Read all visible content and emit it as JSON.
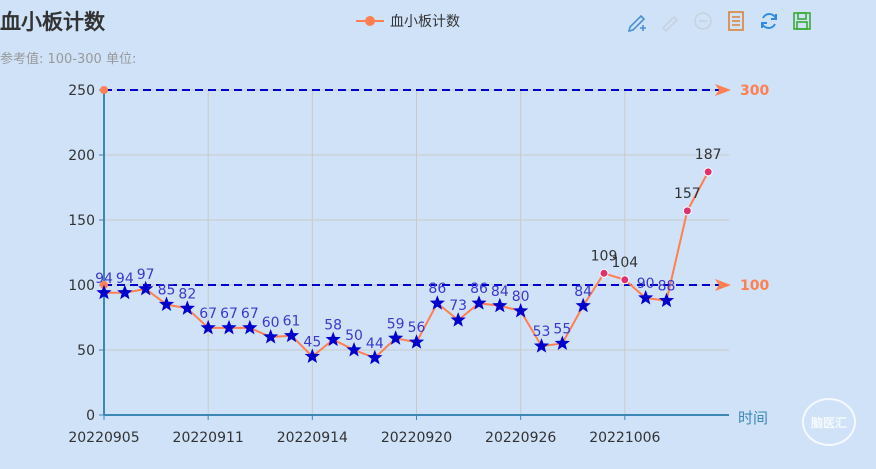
{
  "title": "血小板计数",
  "subtitle": "参考值: 100-300 单位:",
  "legend": {
    "label": "血小板计数"
  },
  "toolbox": [
    {
      "name": "edit-data-icon",
      "color": "#4a90d9"
    },
    {
      "name": "zoom-icon",
      "color": "#c8d2de"
    },
    {
      "name": "zoom-reset-icon",
      "color": "#c8d2de"
    },
    {
      "name": "data-view-icon",
      "color": "#d9823b"
    },
    {
      "name": "restore-icon",
      "color": "#2e8ae6"
    },
    {
      "name": "save-image-icon",
      "color": "#3aaa35"
    }
  ],
  "watermark": "脑医汇",
  "colors": {
    "line": "#ff7f50",
    "marker": "#0000cd",
    "high_point": "#e0306e",
    "label_normal": "#3a3acc",
    "label_high": "#333333",
    "ref_line": "#0000cd",
    "ref_label": "#ff7f50",
    "axis": "#3d87b5",
    "grid": "#c9c9c9"
  },
  "chart_data": {
    "type": "line",
    "x_ticks": [
      "20220905",
      "20220911",
      "20220914",
      "20220920",
      "20220926",
      "20221006"
    ],
    "x_tick_positions": [
      0,
      5,
      10,
      15,
      20,
      25
    ],
    "x_count": 31,
    "xlabel": "时间",
    "ylabel": "",
    "ylim": [
      0,
      250
    ],
    "y_ticks": [
      0,
      50,
      100,
      150,
      200,
      250
    ],
    "grid": true,
    "series": [
      {
        "name": "血小板计数",
        "points": [
          {
            "i": 0,
            "v": 94,
            "label": "94"
          },
          {
            "i": 1,
            "v": 94,
            "label": "94"
          },
          {
            "i": 2,
            "v": 97,
            "label": "97"
          },
          {
            "i": 3,
            "v": 85,
            "label": "85"
          },
          {
            "i": 4,
            "v": 82,
            "label": "82"
          },
          {
            "i": 5,
            "v": 67,
            "label": "67"
          },
          {
            "i": 6,
            "v": 67,
            "label": "67"
          },
          {
            "i": 7,
            "v": 67,
            "label": "67"
          },
          {
            "i": 8,
            "v": 60,
            "label": "60"
          },
          {
            "i": 9,
            "v": 61,
            "label": "61"
          },
          {
            "i": 10,
            "v": 45,
            "label": "45"
          },
          {
            "i": 11,
            "v": 58,
            "label": "58"
          },
          {
            "i": 12,
            "v": 50,
            "label": "50"
          },
          {
            "i": 13,
            "v": 44,
            "label": "44"
          },
          {
            "i": 14,
            "v": 59,
            "label": "59"
          },
          {
            "i": 15,
            "v": 56,
            "label": "56"
          },
          {
            "i": 16,
            "v": 86,
            "label": "86"
          },
          {
            "i": 17,
            "v": 73,
            "label": "73"
          },
          {
            "i": 18,
            "v": 86,
            "label": "86"
          },
          {
            "i": 19,
            "v": 84,
            "label": "84"
          },
          {
            "i": 20,
            "v": 80,
            "label": "80"
          },
          {
            "i": 21,
            "v": 53,
            "label": "53"
          },
          {
            "i": 22,
            "v": 55,
            "label": "55"
          },
          {
            "i": 23,
            "v": 84,
            "label": "84"
          },
          {
            "i": 24,
            "v": 109,
            "label": "109"
          },
          {
            "i": 25,
            "v": 104,
            "label": "104"
          },
          {
            "i": 26,
            "v": 90,
            "label": "90"
          },
          {
            "i": 27,
            "v": 88,
            "label": "88"
          },
          {
            "i": 28,
            "v": 157,
            "label": "157"
          },
          {
            "i": 29,
            "v": 187,
            "label": "187"
          }
        ]
      }
    ],
    "reference_lines": [
      {
        "value": 300,
        "label": "300",
        "drawn_at": 250
      },
      {
        "value": 100,
        "label": "100",
        "drawn_at": 100
      }
    ]
  }
}
